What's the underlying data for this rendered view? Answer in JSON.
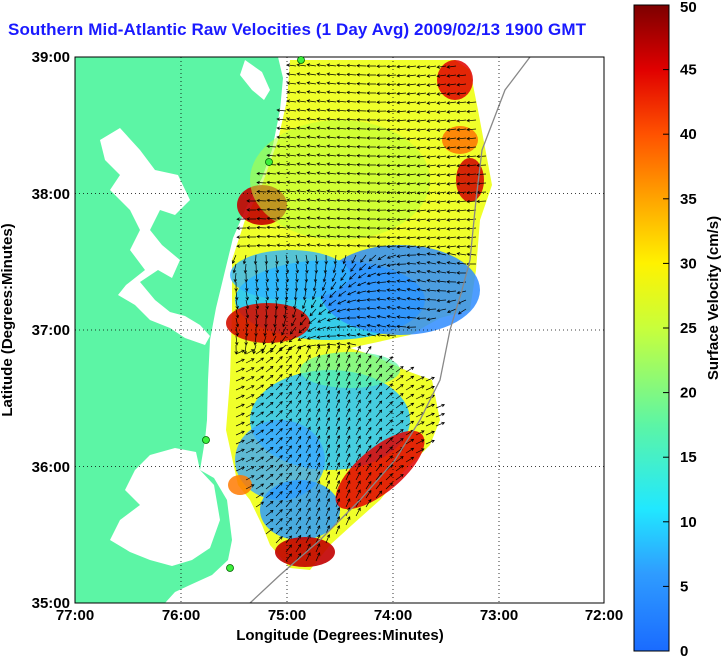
{
  "title": "Southern Mid-Atlantic Raw Velocities (1 Day Avg) 2009/02/13 1900 GMT",
  "map": {
    "x_label": "Longitude (Degrees:Minutes)",
    "y_label": "Latitude (Degrees:Minutes)",
    "x_ticks": [
      "77:00",
      "76:00",
      "75:00",
      "74:00",
      "73:00",
      "72:00"
    ],
    "y_ticks": [
      "39:00",
      "38:00",
      "37:00",
      "36:00",
      "35:00"
    ],
    "lon_range": [
      -77,
      -72
    ],
    "lat_range": [
      35,
      39
    ],
    "land_color": "#5cf5a5",
    "bay_color": "#ffffff"
  },
  "colorbar": {
    "label": "Surface Velocity (cm/s)",
    "ticks": [
      "50",
      "45",
      "40",
      "35",
      "30",
      "25",
      "20",
      "15",
      "10",
      "5",
      "0"
    ],
    "range": [
      0,
      50
    ],
    "colormap": "jet"
  },
  "chart_data": {
    "type": "heatmap",
    "title": "Southern Mid-Atlantic Raw Velocities (1 Day Avg) 2009/02/13 1900 GMT",
    "xlabel": "Longitude (Degrees:Minutes)",
    "ylabel": "Latitude (Degrees:Minutes)",
    "xlim": [
      -77,
      -72
    ],
    "ylim": [
      35,
      39
    ],
    "colorbar_label": "Surface Velocity (cm/s)",
    "colorbar_range": [
      0,
      50
    ],
    "grid": true,
    "hf_radar_sites": [
      {
        "lon": -74.88,
        "lat": 38.99
      },
      {
        "lon": -75.08,
        "lat": 38.23
      },
      {
        "lon": -75.69,
        "lat": 36.19
      },
      {
        "lon": -75.47,
        "lat": 35.24
      }
    ],
    "speed_regions": [
      {
        "lon": -75.1,
        "lat": 37.95,
        "speed": 45
      },
      {
        "lon": -74.9,
        "lat": 37.5,
        "speed": 8
      },
      {
        "lon": -74.4,
        "lat": 37.1,
        "speed": 6
      },
      {
        "lon": -75.05,
        "lat": 36.98,
        "speed": 42
      },
      {
        "lon": -74.6,
        "lat": 38.3,
        "speed": 25
      },
      {
        "lon": -73.7,
        "lat": 38.5,
        "speed": 22
      },
      {
        "lon": -73.2,
        "lat": 38.05,
        "speed": 44
      },
      {
        "lon": -73.25,
        "lat": 38.85,
        "speed": 40
      },
      {
        "lon": -74.95,
        "lat": 36.3,
        "speed": 12
      },
      {
        "lon": -74.3,
        "lat": 36.2,
        "speed": 14
      },
      {
        "lon": -73.9,
        "lat": 35.9,
        "speed": 46
      },
      {
        "lon": -74.9,
        "lat": 35.3,
        "speed": 45
      },
      {
        "lon": -74.6,
        "lat": 35.6,
        "speed": 14
      },
      {
        "lon": -75.0,
        "lat": 35.9,
        "speed": 20
      }
    ]
  }
}
